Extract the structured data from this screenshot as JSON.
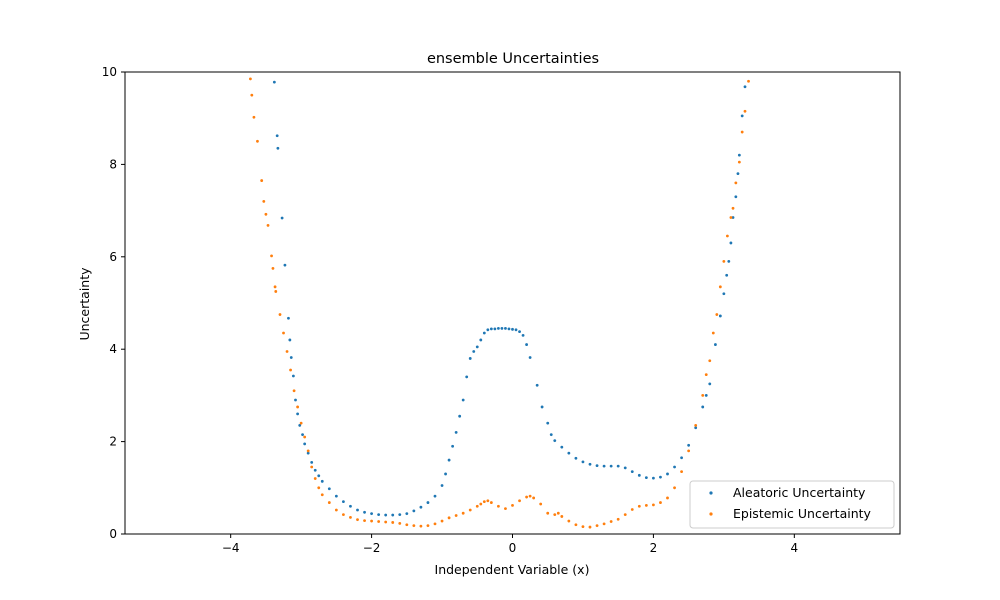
{
  "chart_data": {
    "type": "scatter",
    "title": "ensemble Uncertainties",
    "xlabel": "Independent Variable (x)",
    "ylabel": "Uncertainty",
    "xlim": [
      -5.5,
      5.5
    ],
    "ylim": [
      0,
      10
    ],
    "xticks": [
      -4,
      -2,
      0,
      2,
      4
    ],
    "xtick_labels": [
      "−4",
      "−2",
      "0",
      "2",
      "4"
    ],
    "yticks": [
      0,
      2,
      4,
      6,
      8,
      10
    ],
    "ytick_labels": [
      "0",
      "2",
      "4",
      "6",
      "8",
      "10"
    ],
    "grid": false,
    "legend_position": "lower-right",
    "series": [
      {
        "name": "Aleatoric Uncertainty",
        "color": "#1f77b4",
        "points": [
          [
            -3.38,
            9.78
          ],
          [
            -3.34,
            8.62
          ],
          [
            -3.33,
            8.35
          ],
          [
            -3.27,
            6.84
          ],
          [
            -3.23,
            5.82
          ],
          [
            -3.18,
            4.67
          ],
          [
            -3.16,
            4.2
          ],
          [
            -3.14,
            3.82
          ],
          [
            -3.11,
            3.42
          ],
          [
            -3.08,
            2.9
          ],
          [
            -3.05,
            2.6
          ],
          [
            -3.02,
            2.35
          ],
          [
            -2.98,
            2.15
          ],
          [
            -2.95,
            1.95
          ],
          [
            -2.9,
            1.75
          ],
          [
            -2.85,
            1.55
          ],
          [
            -2.8,
            1.38
          ],
          [
            -2.75,
            1.26
          ],
          [
            -2.7,
            1.14
          ],
          [
            -2.6,
            0.98
          ],
          [
            -2.5,
            0.82
          ],
          [
            -2.4,
            0.7
          ],
          [
            -2.3,
            0.6
          ],
          [
            -2.2,
            0.52
          ],
          [
            -2.1,
            0.47
          ],
          [
            -2.0,
            0.44
          ],
          [
            -1.9,
            0.42
          ],
          [
            -1.8,
            0.41
          ],
          [
            -1.7,
            0.41
          ],
          [
            -1.6,
            0.42
          ],
          [
            -1.5,
            0.44
          ],
          [
            -1.4,
            0.5
          ],
          [
            -1.3,
            0.58
          ],
          [
            -1.2,
            0.68
          ],
          [
            -1.1,
            0.82
          ],
          [
            -1.0,
            1.05
          ],
          [
            -0.95,
            1.3
          ],
          [
            -0.9,
            1.6
          ],
          [
            -0.85,
            1.9
          ],
          [
            -0.8,
            2.2
          ],
          [
            -0.75,
            2.55
          ],
          [
            -0.7,
            2.9
          ],
          [
            -0.65,
            3.4
          ],
          [
            -0.6,
            3.8
          ],
          [
            -0.55,
            3.95
          ],
          [
            -0.5,
            4.05
          ],
          [
            -0.45,
            4.2
          ],
          [
            -0.4,
            4.35
          ],
          [
            -0.35,
            4.42
          ],
          [
            -0.3,
            4.44
          ],
          [
            -0.25,
            4.44
          ],
          [
            -0.2,
            4.45
          ],
          [
            -0.15,
            4.45
          ],
          [
            -0.1,
            4.45
          ],
          [
            -0.05,
            4.44
          ],
          [
            0.0,
            4.43
          ],
          [
            0.05,
            4.42
          ],
          [
            0.1,
            4.38
          ],
          [
            0.15,
            4.3
          ],
          [
            0.2,
            4.1
          ],
          [
            0.25,
            3.82
          ],
          [
            0.35,
            3.22
          ],
          [
            0.42,
            2.75
          ],
          [
            0.5,
            2.4
          ],
          [
            0.55,
            2.15
          ],
          [
            0.6,
            2.02
          ],
          [
            0.7,
            1.88
          ],
          [
            0.8,
            1.75
          ],
          [
            0.9,
            1.64
          ],
          [
            1.0,
            1.56
          ],
          [
            1.1,
            1.51
          ],
          [
            1.2,
            1.48
          ],
          [
            1.3,
            1.47
          ],
          [
            1.4,
            1.47
          ],
          [
            1.5,
            1.47
          ],
          [
            1.6,
            1.43
          ],
          [
            1.7,
            1.35
          ],
          [
            1.8,
            1.27
          ],
          [
            1.9,
            1.22
          ],
          [
            2.0,
            1.21
          ],
          [
            2.1,
            1.23
          ],
          [
            2.2,
            1.3
          ],
          [
            2.3,
            1.45
          ],
          [
            2.4,
            1.65
          ],
          [
            2.5,
            1.92
          ],
          [
            2.6,
            2.3
          ],
          [
            2.7,
            2.75
          ],
          [
            2.75,
            3.0
          ],
          [
            2.8,
            3.25
          ],
          [
            2.88,
            4.1
          ],
          [
            2.95,
            4.72
          ],
          [
            3.0,
            5.2
          ],
          [
            3.04,
            5.6
          ],
          [
            3.07,
            5.9
          ],
          [
            3.1,
            6.3
          ],
          [
            3.13,
            6.85
          ],
          [
            3.17,
            7.3
          ],
          [
            3.2,
            7.8
          ],
          [
            3.22,
            8.2
          ],
          [
            3.26,
            9.05
          ],
          [
            3.3,
            9.68
          ]
        ]
      },
      {
        "name": "Epistemic Uncertainty",
        "color": "#ff7f0e",
        "points": [
          [
            -3.72,
            9.85
          ],
          [
            -3.7,
            9.5
          ],
          [
            -3.67,
            9.02
          ],
          [
            -3.62,
            8.5
          ],
          [
            -3.56,
            7.65
          ],
          [
            -3.53,
            7.2
          ],
          [
            -3.5,
            6.92
          ],
          [
            -3.47,
            6.68
          ],
          [
            -3.42,
            6.02
          ],
          [
            -3.4,
            5.75
          ],
          [
            -3.37,
            5.35
          ],
          [
            -3.36,
            5.25
          ],
          [
            -3.3,
            4.75
          ],
          [
            -3.25,
            4.35
          ],
          [
            -3.2,
            3.95
          ],
          [
            -3.15,
            3.55
          ],
          [
            -3.1,
            3.1
          ],
          [
            -3.05,
            2.75
          ],
          [
            -3.0,
            2.4
          ],
          [
            -2.95,
            2.1
          ],
          [
            -2.9,
            1.8
          ],
          [
            -2.85,
            1.45
          ],
          [
            -2.8,
            1.2
          ],
          [
            -2.75,
            1.0
          ],
          [
            -2.7,
            0.85
          ],
          [
            -2.6,
            0.68
          ],
          [
            -2.5,
            0.52
          ],
          [
            -2.4,
            0.42
          ],
          [
            -2.3,
            0.36
          ],
          [
            -2.2,
            0.31
          ],
          [
            -2.1,
            0.29
          ],
          [
            -2.0,
            0.28
          ],
          [
            -1.9,
            0.27
          ],
          [
            -1.8,
            0.26
          ],
          [
            -1.7,
            0.25
          ],
          [
            -1.6,
            0.23
          ],
          [
            -1.5,
            0.2
          ],
          [
            -1.4,
            0.18
          ],
          [
            -1.3,
            0.17
          ],
          [
            -1.2,
            0.18
          ],
          [
            -1.1,
            0.22
          ],
          [
            -1.0,
            0.28
          ],
          [
            -0.9,
            0.35
          ],
          [
            -0.8,
            0.4
          ],
          [
            -0.7,
            0.45
          ],
          [
            -0.6,
            0.52
          ],
          [
            -0.5,
            0.6
          ],
          [
            -0.45,
            0.65
          ],
          [
            -0.4,
            0.7
          ],
          [
            -0.35,
            0.72
          ],
          [
            -0.3,
            0.68
          ],
          [
            -0.2,
            0.6
          ],
          [
            -0.1,
            0.55
          ],
          [
            0.0,
            0.62
          ],
          [
            0.1,
            0.72
          ],
          [
            0.2,
            0.8
          ],
          [
            0.25,
            0.82
          ],
          [
            0.3,
            0.78
          ],
          [
            0.4,
            0.65
          ],
          [
            0.5,
            0.45
          ],
          [
            0.6,
            0.42
          ],
          [
            0.65,
            0.45
          ],
          [
            0.7,
            0.38
          ],
          [
            0.8,
            0.28
          ],
          [
            0.9,
            0.2
          ],
          [
            1.0,
            0.16
          ],
          [
            1.1,
            0.15
          ],
          [
            1.2,
            0.18
          ],
          [
            1.3,
            0.22
          ],
          [
            1.4,
            0.27
          ],
          [
            1.5,
            0.32
          ],
          [
            1.6,
            0.42
          ],
          [
            1.7,
            0.53
          ],
          [
            1.8,
            0.6
          ],
          [
            1.9,
            0.62
          ],
          [
            2.0,
            0.63
          ],
          [
            2.1,
            0.68
          ],
          [
            2.2,
            0.78
          ],
          [
            2.3,
            1.0
          ],
          [
            2.4,
            1.35
          ],
          [
            2.5,
            1.8
          ],
          [
            2.6,
            2.35
          ],
          [
            2.7,
            3.0
          ],
          [
            2.75,
            3.45
          ],
          [
            2.8,
            3.75
          ],
          [
            2.85,
            4.35
          ],
          [
            2.9,
            4.75
          ],
          [
            2.95,
            5.35
          ],
          [
            3.0,
            5.9
          ],
          [
            3.05,
            6.45
          ],
          [
            3.1,
            6.85
          ],
          [
            3.13,
            7.05
          ],
          [
            3.17,
            7.6
          ],
          [
            3.22,
            8.05
          ],
          [
            3.26,
            8.7
          ],
          [
            3.3,
            9.15
          ],
          [
            3.35,
            9.8
          ]
        ]
      }
    ]
  }
}
